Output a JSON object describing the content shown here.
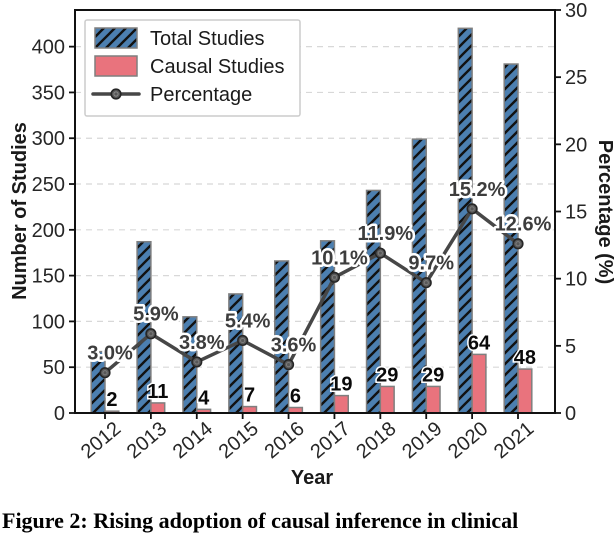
{
  "figure_caption": "Figure 2: Rising adoption of causal inference in clinical",
  "chart_data": {
    "type": "bar",
    "title": "",
    "categories": [
      "2012",
      "2013",
      "2014",
      "2015",
      "2016",
      "2017",
      "2018",
      "2019",
      "2020",
      "2021"
    ],
    "series": [
      {
        "name": "Total Studies",
        "type": "bar",
        "axis": "left",
        "color": "#4C7FB0",
        "hatch": "/",
        "values": [
          67,
          187,
          105,
          130,
          166,
          188,
          243,
          299,
          420,
          381
        ]
      },
      {
        "name": "Causal Studies",
        "type": "bar",
        "axis": "left",
        "color": "#E9737D",
        "values": [
          2,
          11,
          4,
          7,
          6,
          19,
          29,
          29,
          64,
          48
        ]
      },
      {
        "name": "Percentage",
        "type": "line",
        "axis": "right",
        "color": "#474747",
        "values": [
          3.0,
          5.9,
          3.8,
          5.4,
          3.6,
          10.1,
          11.9,
          9.7,
          15.2,
          12.6
        ]
      }
    ],
    "bar_value_labels": [
      "2",
      "11",
      "4",
      "7",
      "6",
      "19",
      "29",
      "29",
      "64",
      "48"
    ],
    "percent_labels": [
      "3.0%",
      "5.9%",
      "3.8%",
      "5.4%",
      "3.6%",
      "10.1%",
      "11.9%",
      "9.7%",
      "15.2%",
      "12.6%"
    ],
    "xlabel": "Year",
    "ylabel_left": "Number of Studies",
    "ylabel_right": "Percentage (%)",
    "left_ticks": [
      "0",
      "50",
      "100",
      "150",
      "200",
      "250",
      "300",
      "350",
      "400"
    ],
    "right_ticks": [
      "0",
      "5",
      "10",
      "15",
      "20",
      "25",
      "30"
    ],
    "ylim_left": [
      0,
      440
    ],
    "ylim_right": [
      0,
      30
    ],
    "grid": "horizontal dashed",
    "legend": {
      "position": "upper-left",
      "items": [
        "Total Studies",
        "Causal Studies",
        "Percentage"
      ]
    },
    "colors": {
      "total": "#4C7FB0",
      "causal": "#E9737D",
      "line": "#474747",
      "bar_edge": "#7F7F7F",
      "grid": "#D8D8D8",
      "annotation": "#3D3D3D",
      "tick_text": "#262626"
    }
  }
}
